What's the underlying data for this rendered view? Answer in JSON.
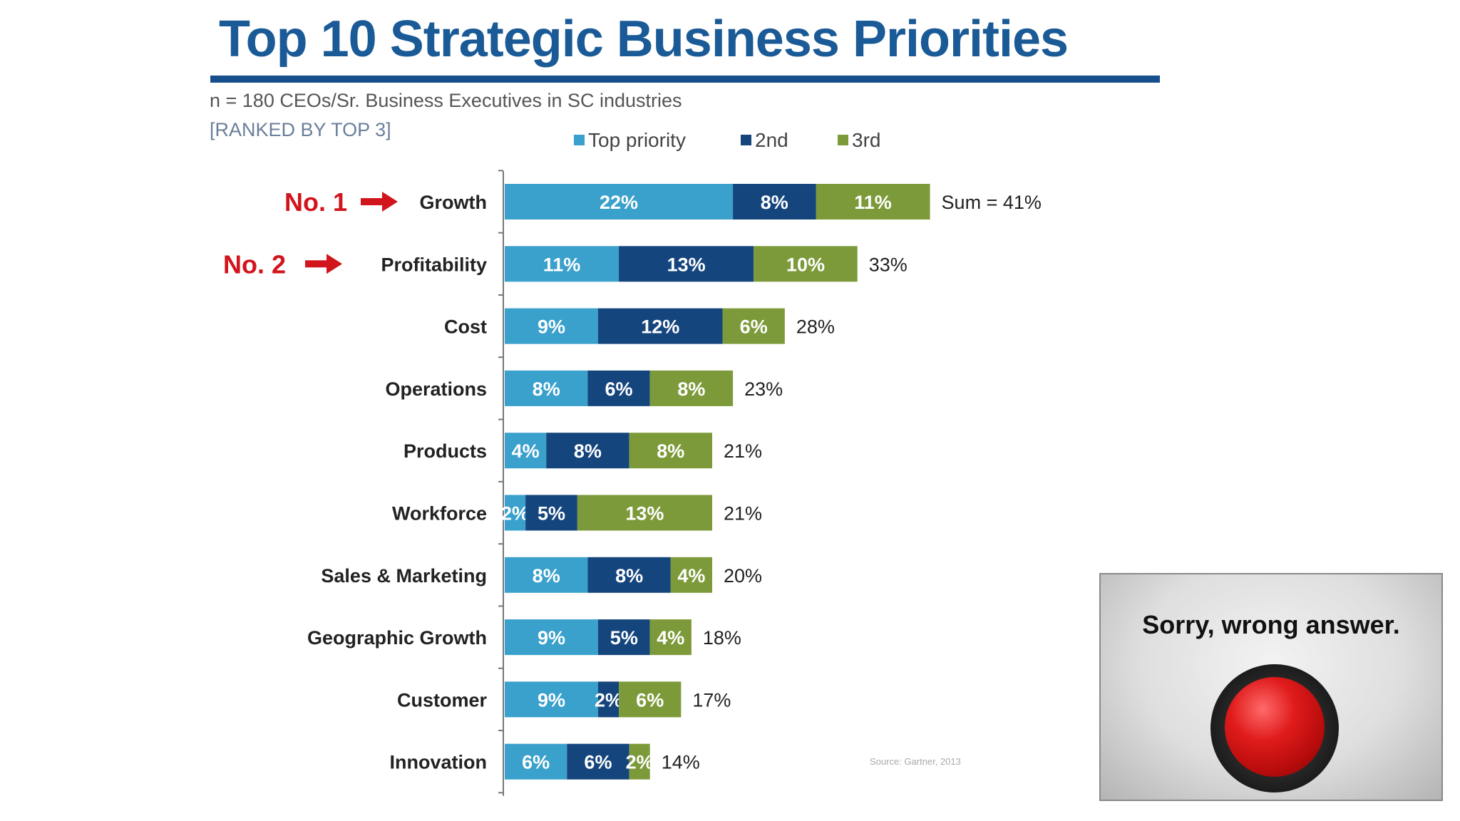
{
  "title": "Top 10 Strategic Business Priorities",
  "subtitle": "n = 180 CEOs/Sr. Business Executives in SC industries",
  "note": "[RANKED BY TOP 3]",
  "source": "Source: Gartner, 2013",
  "colors": {
    "title": "#1a5a96",
    "top": "#3aa0cc",
    "second": "#15457d",
    "third": "#7d9a3a",
    "rank": "#d2141c"
  },
  "chart_data": {
    "type": "bar",
    "orientation": "horizontal",
    "stacked": true,
    "legend": {
      "placement": "top",
      "entries": [
        "Top priority",
        "2nd",
        "3rd"
      ]
    },
    "categories": [
      "Growth",
      "Profitability",
      "Cost",
      "Operations",
      "Products",
      "Workforce",
      "Sales & Marketing",
      "Geographic Growth",
      "Customer",
      "Innovation"
    ],
    "series": [
      {
        "name": "Top priority",
        "values": [
          22,
          11,
          9,
          8,
          4,
          2,
          8,
          9,
          9,
          6
        ],
        "color": "#3aa0cc"
      },
      {
        "name": "2nd",
        "values": [
          8,
          13,
          12,
          6,
          8,
          5,
          8,
          5,
          2,
          6
        ],
        "color": "#15457d"
      },
      {
        "name": "3rd",
        "values": [
          11,
          10,
          6,
          8,
          8,
          13,
          4,
          4,
          6,
          2
        ],
        "color": "#7d9a3a"
      }
    ],
    "segment_labels": [
      [
        "22%",
        "8%",
        "11%"
      ],
      [
        "11%",
        "13%",
        "10%"
      ],
      [
        "9%",
        "12%",
        "6%"
      ],
      [
        "8%",
        "6%",
        "8%"
      ],
      [
        "4%",
        "8%",
        "8%"
      ],
      [
        "2%",
        "5%",
        "13%"
      ],
      [
        "8%",
        "8%",
        "4%"
      ],
      [
        "9%",
        "5%",
        "4%"
      ],
      [
        "9%",
        "2%",
        "6%"
      ],
      [
        "6%",
        "6%",
        "2%"
      ]
    ],
    "sum_labels": [
      "Sum = 41%",
      "33%",
      "28%",
      "23%",
      "21%",
      "21%",
      "20%",
      "18%",
      "17%",
      "14%"
    ],
    "annotations": [
      {
        "text": "No. 1",
        "category": "Growth"
      },
      {
        "text": "No. 2",
        "category": "Profitability"
      }
    ],
    "xlim": [
      0,
      41
    ],
    "grid": false
  },
  "popup": {
    "text": "Sorry, wrong answer.",
    "icon": "red-button-icon"
  }
}
